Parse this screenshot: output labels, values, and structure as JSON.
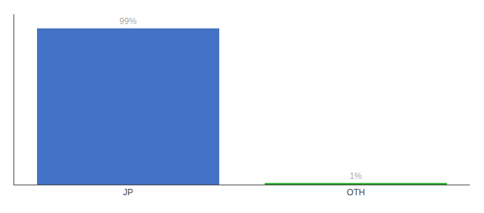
{
  "chart_data": {
    "type": "bar",
    "categories": [
      "JP",
      "OTH"
    ],
    "values": [
      99,
      1
    ],
    "value_labels": [
      "99%",
      "1%"
    ],
    "colors": [
      "#4472c4",
      "#22aa22"
    ],
    "ylim": [
      0,
      108
    ],
    "data_labels": true,
    "tick_labels": "x",
    "grid": false
  }
}
